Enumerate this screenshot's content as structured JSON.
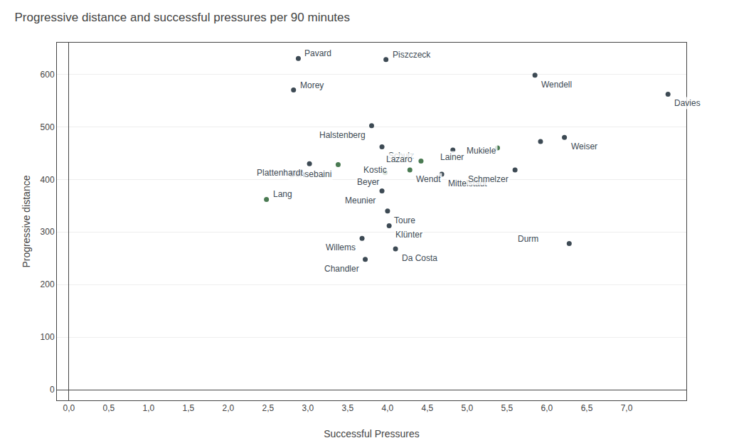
{
  "chart_data": {
    "type": "scatter",
    "title": "Progressive distance and successful pressures per 90 minutes",
    "xlabel": "Successful Pressures",
    "ylabel": "Progressive distance",
    "x": [
      2.88,
      2.82,
      3.98,
      3.8,
      3.93,
      3.38,
      3.97,
      4.28,
      3.93,
      4.0,
      4.02,
      3.68,
      4.1,
      3.72,
      3.02,
      2.48,
      5.85,
      7.52,
      5.92,
      6.22,
      4.82,
      4.42,
      5.38,
      4.68,
      5.6,
      6.28
    ],
    "values": [
      630,
      570,
      628,
      502,
      462,
      428,
      413,
      418,
      378,
      340,
      312,
      288,
      268,
      248,
      430,
      362,
      598,
      562,
      472,
      480,
      456,
      435,
      460,
      410,
      418,
      278
    ],
    "labels": [
      "Pavard",
      "Morey",
      "Piszczeck",
      "Halstenberg",
      "Schulz",
      "Bensebaini",
      "Beyer",
      "Wendt",
      "Meunier",
      "Toure",
      "Klünter",
      "Willems",
      "Da Costa",
      "Chandler",
      "Plattenhardt",
      "Lang",
      "Wendell",
      "Davies",
      "Mukiele",
      "Weiser",
      "Lazaro",
      "Kostic",
      "Lainer",
      "Mittelstädt",
      "Schmelzer",
      "Durm"
    ],
    "colors": [
      "#3d4a54",
      "#3d4a54",
      "#3d4a54",
      "#3d4a54",
      "#3d4a54",
      "#4a7a52",
      "#4a7a52",
      "#4a7a52",
      "#3d4a54",
      "#3d4a54",
      "#3d4a54",
      "#3d4a54",
      "#3d4a54",
      "#3d4a54",
      "#3d4a54",
      "#4a7a52",
      "#3d4a54",
      "#3d4a54",
      "#3d4a54",
      "#3d4a54",
      "#3d4a54",
      "#4a7a52",
      "#4a7a52",
      "#3d4a54",
      "#3d4a54",
      "#3d4a54"
    ],
    "xlim": [
      -0.15,
      7.75
    ],
    "ylim": [
      -20,
      660
    ],
    "xticks": [
      {
        "value": 0.0,
        "label": "0,0"
      },
      {
        "value": 0.5,
        "label": "0,5"
      },
      {
        "value": 1.0,
        "label": "1,0"
      },
      {
        "value": 1.5,
        "label": "1,5"
      },
      {
        "value": 2.0,
        "label": "2,0"
      },
      {
        "value": 2.5,
        "label": "2,5"
      },
      {
        "value": 3.0,
        "label": "3,0"
      },
      {
        "value": 3.5,
        "label": "3,5"
      },
      {
        "value": 4.0,
        "label": "4,0"
      },
      {
        "value": 4.5,
        "label": "4,5"
      },
      {
        "value": 5.0,
        "label": "5,0"
      },
      {
        "value": 5.5,
        "label": "5,5"
      },
      {
        "value": 6.0,
        "label": "6,0"
      },
      {
        "value": 6.5,
        "label": "6,5"
      },
      {
        "value": 7.0,
        "label": "7,0"
      }
    ],
    "yticks": [
      0,
      100,
      200,
      300,
      400,
      500,
      600
    ],
    "grid": "y"
  }
}
